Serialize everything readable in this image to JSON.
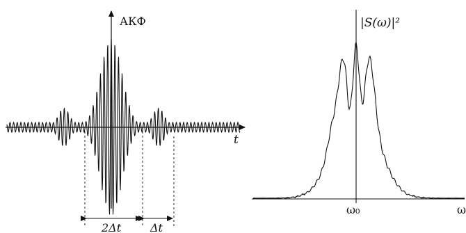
{
  "left_plot": {
    "y_axis_label": "АКФ",
    "x_axis_label": "t",
    "dim_wide": "2Δt",
    "dim_narrow": "Δt"
  },
  "right_plot": {
    "y_axis_label": "|S(ω)|²",
    "center_tick_label": "ω₀",
    "x_axis_label": "ω"
  },
  "colors": {
    "ink": "#111111",
    "background": "#ffffff"
  }
}
